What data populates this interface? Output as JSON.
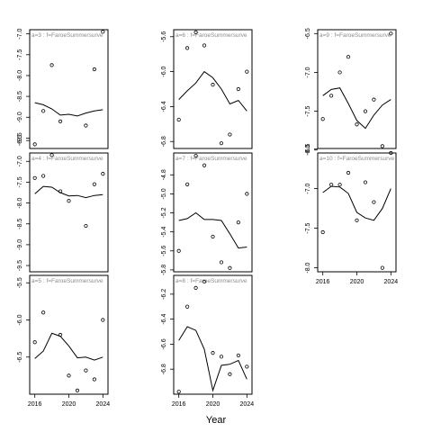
{
  "figure": {
    "xlabel": "Year",
    "colors": {
      "line": "#000000",
      "points": "#000000",
      "frame": "#000000",
      "panel_label": "#8a8a8a"
    }
  },
  "chart_data": [
    {
      "type": "line",
      "label": "a=3  :  f=FaroeSummersurve",
      "x": [
        2016,
        2017,
        2018,
        2019,
        2020,
        2021,
        2022,
        2023,
        2024
      ],
      "points": [
        [
          2016,
          -9.65
        ],
        [
          2017,
          -8.85
        ],
        [
          2018,
          -7.75
        ],
        [
          2019,
          -9.1
        ],
        [
          2022,
          -9.2
        ],
        [
          2023,
          -7.85
        ],
        [
          2024,
          -6.95
        ]
      ],
      "fit": [
        -8.65,
        -8.7,
        -8.8,
        -8.95,
        -8.93,
        -8.97,
        -8.9,
        -8.85,
        -8.82
      ],
      "ylim": [
        -9.75,
        -6.9
      ],
      "yticks": [
        -9.5,
        -9.0,
        -8.5,
        -8.0,
        -7.5,
        -7.0
      ],
      "ytick_labels": [
        "-9.5",
        "-9.0",
        "-8.5",
        "-8.0",
        "-7.5",
        "-7.0"
      ]
    },
    {
      "type": "line",
      "label": "a=4  :  f=FaroeSummersurve",
      "x": [
        2016,
        2017,
        2018,
        2019,
        2020,
        2021,
        2022,
        2023,
        2024
      ],
      "points": [
        [
          2016,
          -7.4
        ],
        [
          2017,
          -7.35
        ],
        [
          2018,
          -6.85
        ],
        [
          2019,
          -7.72
        ],
        [
          2020,
          -7.95
        ],
        [
          2022,
          -8.55
        ],
        [
          2023,
          -7.55
        ],
        [
          2024,
          -7.3
        ]
      ],
      "fit": [
        -7.78,
        -7.6,
        -7.62,
        -7.75,
        -7.83,
        -7.82,
        -7.87,
        -7.82,
        -7.8
      ],
      "ylim": [
        -9.65,
        -6.8
      ],
      "yticks": [
        -9.5,
        -9.0,
        -8.5,
        -8.0,
        -7.5,
        -7.0,
        -6.5
      ],
      "ytick_labels": [
        "-9.5",
        "-9.0",
        "-8.5",
        "-8.0",
        "-7.5",
        "-7.0",
        "-6.5"
      ]
    },
    {
      "type": "line",
      "label": "a=5  :  f=FaroeSummersurve",
      "x": [
        2016,
        2017,
        2018,
        2019,
        2020,
        2021,
        2022,
        2023,
        2024
      ],
      "points": [
        [
          2016,
          -6.3
        ],
        [
          2017,
          -5.9
        ],
        [
          2019,
          -6.2
        ],
        [
          2020,
          -6.75
        ],
        [
          2021,
          -6.95
        ],
        [
          2022,
          -6.68
        ],
        [
          2023,
          -6.8
        ],
        [
          2024,
          -6.0
        ]
      ],
      "fit": [
        -6.52,
        -6.42,
        -6.18,
        -6.22,
        -6.35,
        -6.51,
        -6.5,
        -6.54,
        -6.5
      ],
      "ylim": [
        -7.0,
        -5.4
      ],
      "yticks": [
        -6.5,
        -6.0,
        -5.5
      ],
      "ytick_labels": [
        "-6.5",
        "-6.0",
        "-5.5"
      ]
    },
    {
      "type": "line",
      "label": "a=6  :  f=FaroeSummersurve",
      "x": [
        2016,
        2017,
        2018,
        2019,
        2020,
        2021,
        2022,
        2023,
        2024
      ],
      "points": [
        [
          2016,
          -6.55
        ],
        [
          2017,
          -5.73
        ],
        [
          2018,
          -5.55
        ],
        [
          2019,
          -5.7
        ],
        [
          2020,
          -6.15
        ],
        [
          2021,
          -6.82
        ],
        [
          2022,
          -6.72
        ],
        [
          2023,
          -6.2
        ],
        [
          2024,
          -6.0
        ]
      ],
      "fit": [
        -6.32,
        -6.22,
        -6.13,
        -6.0,
        -6.07,
        -6.2,
        -6.37,
        -6.33,
        -6.45
      ],
      "ylim": [
        -6.88,
        -5.52
      ],
      "yticks": [
        -6.8,
        -6.4,
        -6.0,
        -5.6
      ],
      "ytick_labels": [
        "-6.8",
        "-6.4",
        "-6.0",
        "-5.6"
      ]
    },
    {
      "type": "line",
      "label": "a=7  :  f=FaroeSummersurve",
      "x": [
        2016,
        2017,
        2018,
        2019,
        2020,
        2021,
        2022,
        2023,
        2024
      ],
      "points": [
        [
          2016,
          -5.6
        ],
        [
          2017,
          -4.9
        ],
        [
          2018,
          -4.6
        ],
        [
          2019,
          -4.7
        ],
        [
          2020,
          -5.45
        ],
        [
          2021,
          -5.72
        ],
        [
          2022,
          -5.78
        ],
        [
          2023,
          -5.3
        ],
        [
          2024,
          -5.0
        ]
      ],
      "fit": [
        -5.28,
        -5.26,
        -5.2,
        -5.27,
        -5.27,
        -5.28,
        -5.42,
        -5.57,
        -5.56
      ],
      "ylim": [
        -5.82,
        -4.57
      ],
      "yticks": [
        -5.8,
        -5.6,
        -5.4,
        -5.2,
        -5.0,
        -4.8
      ],
      "ytick_labels": [
        "-5.8",
        "-5.6",
        "-5.4",
        "-5.2",
        "-5.0",
        "-4.8"
      ]
    },
    {
      "type": "line",
      "label": "a=8  :  f=FaroeSummersurve",
      "x": [
        2016,
        2017,
        2018,
        2019,
        2020,
        2021,
        2022,
        2023,
        2024
      ],
      "points": [
        [
          2016,
          -6.98
        ],
        [
          2017,
          -6.3
        ],
        [
          2018,
          -6.15
        ],
        [
          2019,
          -6.1
        ],
        [
          2020,
          -6.67
        ],
        [
          2021,
          -6.7
        ],
        [
          2022,
          -6.84
        ],
        [
          2023,
          -6.69
        ],
        [
          2024,
          -6.78
        ]
      ],
      "fit": [
        -6.57,
        -6.46,
        -6.49,
        -6.64,
        -6.97,
        -6.77,
        -6.76,
        -6.73,
        -6.88
      ],
      "ylim": [
        -7.0,
        -6.05
      ],
      "yticks": [
        -6.8,
        -6.6,
        -6.4,
        -6.2
      ],
      "ytick_labels": [
        "-6.8",
        "-6.6",
        "-6.4",
        "-6.2"
      ]
    },
    {
      "type": "line",
      "label": "a=9  :  f=FaroeSummersurve",
      "x": [
        2016,
        2017,
        2018,
        2019,
        2020,
        2021,
        2022,
        2023,
        2024
      ],
      "points": [
        [
          2016,
          -7.6
        ],
        [
          2017,
          -7.3
        ],
        [
          2018,
          -7.0
        ],
        [
          2019,
          -6.8
        ],
        [
          2020,
          -7.67
        ],
        [
          2021,
          -7.5
        ],
        [
          2022,
          -7.35
        ],
        [
          2023,
          -7.95
        ],
        [
          2024,
          -6.5
        ]
      ],
      "fit": [
        -7.3,
        -7.22,
        -7.2,
        -7.4,
        -7.62,
        -7.72,
        -7.55,
        -7.42,
        -7.35
      ],
      "ylim": [
        -7.98,
        -6.45
      ],
      "yticks": [
        -8.0,
        -7.5,
        -7.0,
        -6.5
      ],
      "ytick_labels": [
        "-8.0",
        "-7.5",
        "-7.0",
        "-6.5"
      ]
    },
    {
      "type": "line",
      "label": "a=10  :  f=FaroeSummersurve",
      "x": [
        2016,
        2017,
        2018,
        2019,
        2020,
        2021,
        2022,
        2023,
        2024
      ],
      "points": [
        [
          2016,
          -7.55
        ],
        [
          2017,
          -6.95
        ],
        [
          2018,
          -6.95
        ],
        [
          2019,
          -6.8
        ],
        [
          2020,
          -7.4
        ],
        [
          2021,
          -6.92
        ],
        [
          2022,
          -7.17
        ],
        [
          2023,
          -8.0
        ],
        [
          2024,
          -6.55
        ]
      ],
      "fit": [
        -7.05,
        -6.97,
        -6.98,
        -7.06,
        -7.3,
        -7.37,
        -7.4,
        -7.25,
        -7.0
      ],
      "ylim": [
        -8.05,
        -6.55
      ],
      "yticks": [
        -8.0,
        -7.5,
        -7.0,
        -6.5
      ],
      "ytick_labels": [
        "-8.0",
        "-7.5",
        "-7.0",
        "-6.5"
      ]
    }
  ],
  "xaxis": {
    "xlim": [
      2015.4,
      2024.6
    ],
    "ticks": [
      2016,
      2020,
      2024
    ],
    "tick_labels": [
      "2016",
      "2020",
      "2024"
    ]
  }
}
